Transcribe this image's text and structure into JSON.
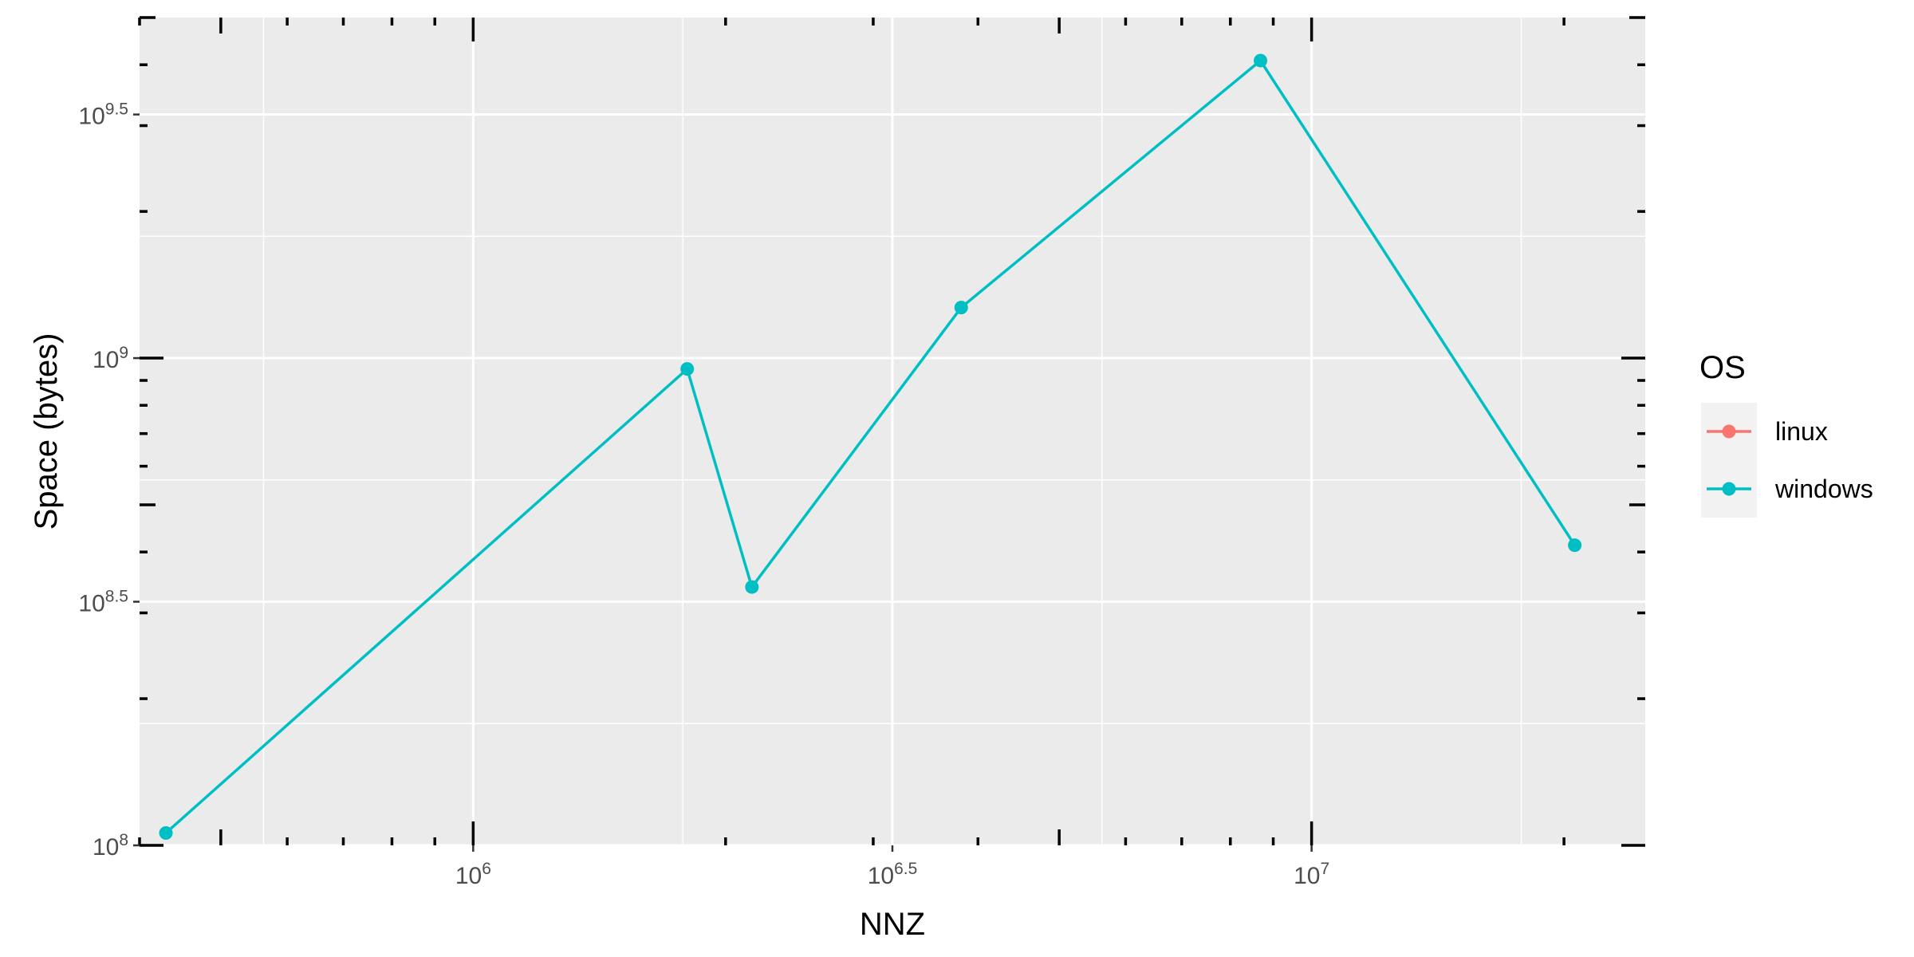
{
  "chart_data": {
    "type": "line",
    "title": "",
    "xlabel": "NNZ",
    "ylabel": "Space (bytes)",
    "x_scale": "log10",
    "y_scale": "log10",
    "xlim": [
      400000,
      25000000
    ],
    "ylim": [
      100000000,
      5000000000
    ],
    "x_ticks": [
      {
        "value": 1000000,
        "base": "10",
        "exp": "6"
      },
      {
        "value": 3162278,
        "base": "10",
        "exp": "6.5"
      },
      {
        "value": 10000000,
        "base": "10",
        "exp": "7"
      }
    ],
    "y_ticks": [
      {
        "value": 100000000,
        "base": "10",
        "exp": "8"
      },
      {
        "value": 316227766,
        "base": "10",
        "exp": "8.5"
      },
      {
        "value": 1000000000,
        "base": "10",
        "exp": "9"
      },
      {
        "value": 3162277660,
        "base": "10",
        "exp": "9.5"
      }
    ],
    "grid": true,
    "legend": {
      "title": "OS",
      "position": "right",
      "entries": [
        {
          "label": "linux",
          "color": "#F8766D"
        },
        {
          "label": "windows",
          "color": "#00BFC4"
        }
      ]
    },
    "series": [
      {
        "name": "windows",
        "color": "#00BFC4",
        "x": [
          430000,
          1800000,
          2150000,
          3820000,
          8690000,
          20600000
        ],
        "y": [
          106000000,
          950000000,
          339000000,
          1270000000,
          4080000000,
          413000000
        ]
      }
    ]
  }
}
